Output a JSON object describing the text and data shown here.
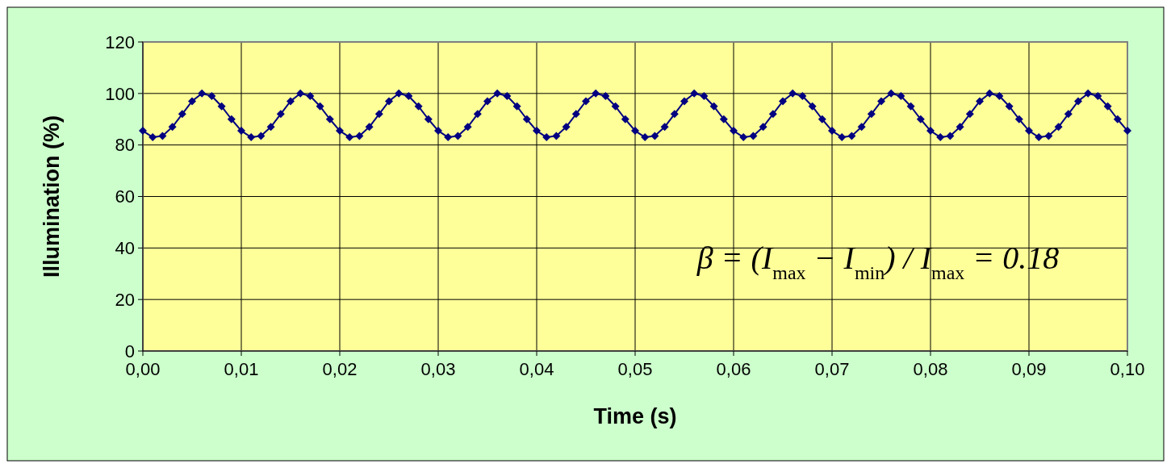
{
  "chart_data": {
    "type": "line",
    "xlabel": "Time (s)",
    "ylabel": "Illumination (%)",
    "x": [
      0,
      0.001,
      0.002,
      0.003,
      0.004,
      0.005,
      0.006,
      0.007,
      0.008,
      0.009,
      0.01,
      0.011,
      0.012,
      0.013,
      0.014,
      0.015,
      0.016,
      0.017,
      0.018,
      0.019,
      0.02,
      0.021,
      0.022,
      0.023,
      0.024,
      0.025,
      0.026,
      0.027,
      0.028,
      0.029,
      0.03,
      0.031,
      0.032,
      0.033,
      0.034,
      0.035,
      0.036,
      0.037,
      0.038,
      0.039,
      0.04,
      0.041,
      0.042,
      0.043,
      0.044,
      0.045,
      0.046,
      0.047,
      0.048,
      0.049,
      0.05,
      0.051,
      0.052,
      0.053,
      0.054,
      0.055,
      0.056,
      0.057,
      0.058,
      0.059,
      0.06,
      0.061,
      0.062,
      0.063,
      0.064,
      0.065,
      0.066,
      0.067,
      0.068,
      0.069,
      0.07,
      0.071,
      0.072,
      0.073,
      0.074,
      0.075,
      0.076,
      0.077,
      0.078,
      0.079,
      0.08,
      0.081,
      0.082,
      0.083,
      0.084,
      0.085,
      0.086,
      0.087,
      0.088,
      0.089,
      0.09,
      0.091,
      0.092,
      0.093,
      0.094,
      0.095,
      0.096,
      0.097,
      0.098,
      0.099,
      0.1
    ],
    "series": [
      {
        "color": "#000080",
        "values": [
          85.5,
          83,
          83.5,
          87,
          92,
          97,
          100,
          99,
          95,
          90,
          85.5,
          83,
          83.5,
          87,
          92,
          97,
          100,
          99,
          95,
          90,
          85.5,
          83,
          83.5,
          87,
          92,
          97,
          100,
          99,
          95,
          90,
          85.5,
          83,
          83.5,
          87,
          92,
          97,
          100,
          99,
          95,
          90,
          85.5,
          83,
          83.5,
          87,
          92,
          97,
          100,
          99,
          95,
          90,
          85.5,
          83,
          83.5,
          87,
          92,
          97,
          100,
          99,
          95,
          90,
          85.5,
          83,
          83.5,
          87,
          92,
          97,
          100,
          99,
          95,
          90,
          85.5,
          83,
          83.5,
          87,
          92,
          97,
          100,
          99,
          95,
          90,
          85.5,
          83,
          83.5,
          87,
          92,
          97,
          100,
          99,
          95,
          90,
          85.5,
          83,
          83.5,
          87,
          92,
          97,
          100,
          99,
          95,
          90,
          85.5
        ]
      }
    ],
    "xlim": [
      0,
      0.1
    ],
    "xticks": [
      {
        "value": 0,
        "label": "0,00"
      },
      {
        "value": 0.01,
        "label": "0,01"
      },
      {
        "value": 0.02,
        "label": "0,02"
      },
      {
        "value": 0.03,
        "label": "0,03"
      },
      {
        "value": 0.04,
        "label": "0,04"
      },
      {
        "value": 0.05,
        "label": "0,05"
      },
      {
        "value": 0.06,
        "label": "0,06"
      },
      {
        "value": 0.07,
        "label": "0,07"
      },
      {
        "value": 0.08,
        "label": "0,08"
      },
      {
        "value": 0.09,
        "label": "0,09"
      },
      {
        "value": 0.1,
        "label": "0,10"
      }
    ],
    "ylim": [
      0,
      120
    ],
    "yticks": [
      0,
      20,
      40,
      60,
      80,
      100,
      120
    ],
    "grid": true,
    "marker": "diamond",
    "line_style": "solid",
    "annotations": [
      "β = (I$_{max}$ − I$_{min}$) / I$_{max}$ = 0.18"
    ]
  }
}
